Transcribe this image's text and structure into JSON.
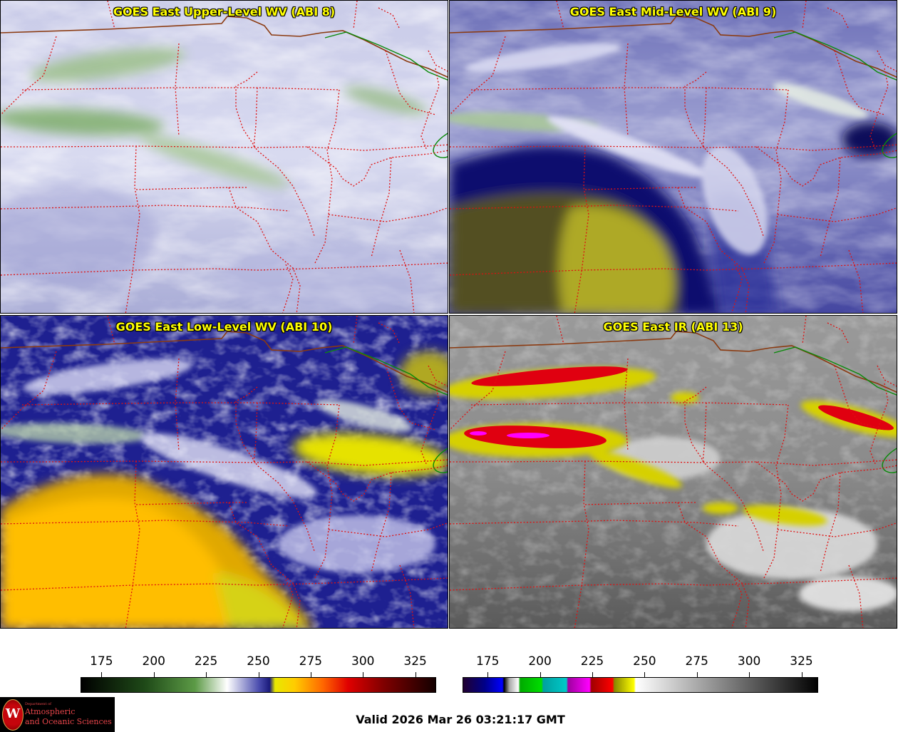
{
  "panels": [
    {
      "title": "GOES East Upper-Level WV (ABI 8)"
    },
    {
      "title": "GOES East Mid-Level WV (ABI 9)"
    },
    {
      "title": "GOES East Low-Level WV (ABI 10)"
    },
    {
      "title": "GOES East IR (ABI 13)"
    }
  ],
  "colorbar_wv": {
    "ticks": [
      "175",
      "200",
      "225",
      "250",
      "275",
      "300",
      "325"
    ],
    "range": [
      165,
      335
    ]
  },
  "colorbar_ir": {
    "ticks": [
      "175",
      "200",
      "225",
      "250",
      "275",
      "300",
      "325"
    ],
    "range": [
      163,
      333
    ]
  },
  "logo": {
    "line1": "Department of",
    "line2": "Atmospheric",
    "line3": "and Oceanic Sciences",
    "seal": "W"
  },
  "valid_time": "Valid 2026 Mar 26 03:21:17 GMT",
  "colors": {
    "title_text": "#ffff00",
    "state_border": "#e01010",
    "country_border": "#8b3a10",
    "water_border": "#0a8a0a"
  }
}
